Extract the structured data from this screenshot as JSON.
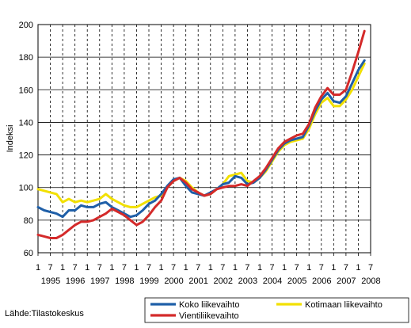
{
  "chart_data": {
    "type": "line",
    "ylabel": "Indeksi",
    "ylim": [
      60,
      200
    ],
    "yticks": [
      60,
      80,
      100,
      120,
      140,
      160,
      180,
      200
    ],
    "x_tick_month_labels": [
      "1",
      "7",
      "1",
      "7",
      "1",
      "7",
      "1",
      "7",
      "1",
      "7",
      "1",
      "7",
      "1",
      "7",
      "1",
      "7",
      "1",
      "7",
      "1",
      "7",
      "1",
      "7",
      "1",
      "7",
      "1",
      "7",
      "1",
      "7"
    ],
    "x_year_labels": [
      "1995",
      "1996",
      "1997",
      "1998",
      "1999",
      "2000",
      "2001",
      "2002",
      "2003",
      "2004",
      "2005",
      "2006",
      "2007",
      "2008"
    ],
    "grid": "vertical-dashed-horizontal-solid",
    "legend_position": "bottom-right",
    "source": "Lähde:Tilastokeskus",
    "x": [
      1995.0,
      1995.25,
      1995.5,
      1995.75,
      1996.0,
      1996.25,
      1996.5,
      1996.75,
      1997.0,
      1997.25,
      1997.5,
      1997.75,
      1998.0,
      1998.25,
      1998.5,
      1998.75,
      1999.0,
      1999.25,
      1999.5,
      1999.75,
      2000.0,
      2000.25,
      2000.5,
      2000.75,
      2001.0,
      2001.25,
      2001.5,
      2001.75,
      2002.0,
      2002.25,
      2002.5,
      2002.75,
      2003.0,
      2003.25,
      2003.5,
      2003.75,
      2004.0,
      2004.25,
      2004.5,
      2004.75,
      2005.0,
      2005.25,
      2005.5,
      2005.75,
      2006.0,
      2006.25,
      2006.5,
      2006.75,
      2007.0,
      2007.25,
      2007.5,
      2007.75,
      2008.0,
      2008.25
    ],
    "series": [
      {
        "name": "Koko liikevaihto",
        "color": "#1f5fa8",
        "values": [
          88,
          86,
          85,
          84,
          82,
          86,
          86,
          89,
          88,
          88,
          90,
          91,
          88,
          86,
          84,
          82,
          83,
          86,
          90,
          92,
          96,
          101,
          105,
          106,
          101,
          97,
          96,
          95,
          97,
          99,
          102,
          103,
          107,
          106,
          102,
          103,
          106,
          111,
          117,
          123,
          127,
          129,
          130,
          131,
          138,
          147,
          154,
          158,
          153,
          152,
          156,
          164,
          172,
          178
        ]
      },
      {
        "name": "Kotimaan liikevaihto",
        "color": "#f2e000",
        "values": [
          99,
          98,
          97,
          96,
          91,
          93,
          91,
          92,
          91,
          92,
          93,
          96,
          93,
          91,
          89,
          88,
          88,
          90,
          92,
          94,
          95,
          100,
          104,
          106,
          104,
          100,
          97,
          95,
          96,
          99,
          102,
          107,
          108,
          109,
          104,
          103,
          106,
          110,
          116,
          122,
          126,
          128,
          129,
          130,
          136,
          145,
          152,
          155,
          150,
          150,
          154,
          160,
          168,
          176
        ]
      },
      {
        "name": "Vientiliikevaihto",
        "color": "#d42a2a",
        "values": [
          71,
          70,
          69,
          69,
          71,
          74,
          77,
          79,
          79,
          80,
          82,
          84,
          87,
          85,
          83,
          80,
          77,
          79,
          83,
          88,
          92,
          100,
          104,
          106,
          103,
          99,
          97,
          95,
          96,
          99,
          100,
          101,
          101,
          102,
          101,
          104,
          107,
          112,
          118,
          124,
          128,
          130,
          132,
          133,
          139,
          149,
          156,
          161,
          157,
          157,
          160,
          171,
          183,
          196
        ]
      }
    ]
  }
}
